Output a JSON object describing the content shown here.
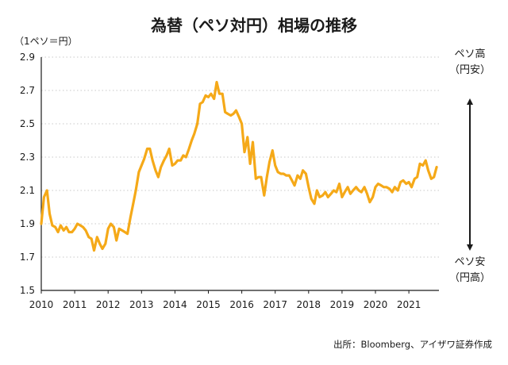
{
  "chart_data": {
    "type": "line",
    "title": "為替（ペソ対円）相場の推移",
    "ylabel": "（1ペソ＝円）",
    "ylim": [
      1.5,
      2.9
    ],
    "yticks": [
      "1.5",
      "1.7",
      "1.9",
      "2.1",
      "2.3",
      "2.5",
      "2.7",
      "2.9"
    ],
    "xticks": [
      "2010",
      "2011",
      "2012",
      "2013",
      "2014",
      "2015",
      "2016",
      "2017",
      "2018",
      "2019",
      "2020",
      "2021"
    ],
    "x_start_year": 2010,
    "line_color": "#F5A918",
    "grid": true,
    "annotations": {
      "top_line1": "ペソ高",
      "top_line2": "（円安）",
      "bottom_line1": "ペソ安",
      "bottom_line2": "（円高）"
    },
    "source": "出所：Bloomberg、アイザワ証券作成",
    "series": [
      {
        "x": [
          2010.0,
          2010.08,
          2010.17,
          2010.25,
          2010.33,
          2010.42,
          2010.5,
          2010.58,
          2010.67,
          2010.75,
          2010.83,
          2010.92,
          2011.0,
          2011.08,
          2011.17,
          2011.25,
          2011.33,
          2011.42,
          2011.5,
          2011.58,
          2011.67,
          2011.75,
          2011.83,
          2011.92,
          2012.0,
          2012.08,
          2012.17,
          2012.25,
          2012.33,
          2012.42,
          2012.5,
          2012.58,
          2012.67,
          2012.75,
          2012.83,
          2012.92,
          2013.0,
          2013.08,
          2013.17,
          2013.25,
          2013.33,
          2013.42,
          2013.5,
          2013.58,
          2013.67,
          2013.75,
          2013.83,
          2013.92,
          2014.0,
          2014.08,
          2014.17,
          2014.25,
          2014.33,
          2014.42,
          2014.5,
          2014.58,
          2014.67,
          2014.75,
          2014.83,
          2014.92,
          2015.0,
          2015.08,
          2015.17,
          2015.25,
          2015.33,
          2015.42,
          2015.5,
          2015.58,
          2015.67,
          2015.75,
          2015.83,
          2015.92,
          2016.0,
          2016.08,
          2016.17,
          2016.25,
          2016.33,
          2016.42,
          2016.5,
          2016.58,
          2016.67,
          2016.75,
          2016.83,
          2016.92,
          2017.0,
          2017.08,
          2017.17,
          2017.25,
          2017.33,
          2017.42,
          2017.5,
          2017.58,
          2017.67,
          2017.75,
          2017.83,
          2017.92,
          2018.0,
          2018.08,
          2018.17,
          2018.25,
          2018.33,
          2018.42,
          2018.5,
          2018.58,
          2018.67,
          2018.75,
          2018.83,
          2018.92,
          2019.0,
          2019.08,
          2019.17,
          2019.25,
          2019.33,
          2019.42,
          2019.5,
          2019.58,
          2019.67,
          2019.75,
          2019.83,
          2019.92,
          2020.0,
          2020.08,
          2020.17,
          2020.25,
          2020.33,
          2020.42,
          2020.5,
          2020.58,
          2020.67,
          2020.75,
          2020.83,
          2020.92,
          2021.0,
          2021.08,
          2021.17,
          2021.25,
          2021.33,
          2021.42,
          2021.5,
          2021.58,
          2021.67,
          2021.75,
          2021.83
        ],
        "values": [
          1.9,
          2.06,
          2.1,
          1.96,
          1.89,
          1.88,
          1.85,
          1.89,
          1.86,
          1.88,
          1.85,
          1.85,
          1.87,
          1.9,
          1.89,
          1.88,
          1.86,
          1.82,
          1.81,
          1.74,
          1.82,
          1.78,
          1.75,
          1.78,
          1.87,
          1.9,
          1.88,
          1.8,
          1.87,
          1.86,
          1.85,
          1.84,
          1.94,
          2.02,
          2.1,
          2.21,
          2.25,
          2.29,
          2.35,
          2.35,
          2.28,
          2.22,
          2.18,
          2.24,
          2.28,
          2.31,
          2.35,
          2.25,
          2.26,
          2.28,
          2.28,
          2.31,
          2.3,
          2.35,
          2.4,
          2.44,
          2.5,
          2.62,
          2.63,
          2.67,
          2.66,
          2.68,
          2.65,
          2.75,
          2.68,
          2.68,
          2.57,
          2.56,
          2.55,
          2.56,
          2.58,
          2.54,
          2.5,
          2.33,
          2.42,
          2.26,
          2.39,
          2.17,
          2.18,
          2.18,
          2.07,
          2.18,
          2.27,
          2.34,
          2.25,
          2.21,
          2.2,
          2.2,
          2.19,
          2.19,
          2.16,
          2.13,
          2.19,
          2.17,
          2.22,
          2.2,
          2.12,
          2.05,
          2.02,
          2.1,
          2.06,
          2.07,
          2.09,
          2.06,
          2.08,
          2.1,
          2.09,
          2.14,
          2.06,
          2.09,
          2.12,
          2.08,
          2.1,
          2.12,
          2.1,
          2.09,
          2.12,
          2.08,
          2.03,
          2.06,
          2.12,
          2.14,
          2.13,
          2.12,
          2.12,
          2.11,
          2.09,
          2.12,
          2.1,
          2.15,
          2.16,
          2.14,
          2.15,
          2.12,
          2.17,
          2.18,
          2.26,
          2.25,
          2.28,
          2.22,
          2.17,
          2.18,
          2.24
        ]
      }
    ]
  }
}
